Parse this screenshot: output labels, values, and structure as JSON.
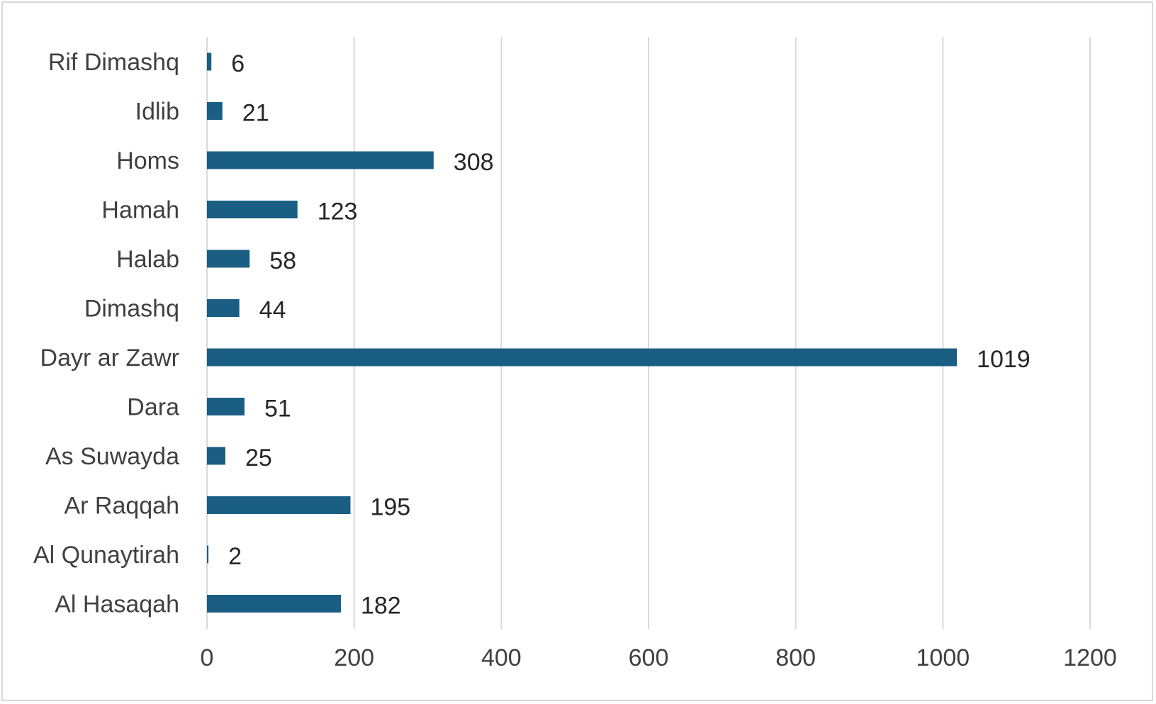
{
  "chart_data": {
    "type": "bar",
    "orientation": "horizontal",
    "categories": [
      "Rif Dimashq",
      "Idlib",
      "Homs",
      "Hamah",
      "Halab",
      "Dimashq",
      "Dayr ar Zawr",
      "Dara",
      "As Suwayda",
      "Ar Raqqah",
      "Al Qunaytirah",
      "Al Hasaqah"
    ],
    "values": [
      6,
      21,
      308,
      123,
      58,
      44,
      1019,
      51,
      25,
      195,
      2,
      182
    ],
    "xlim": [
      0,
      1200
    ],
    "xticks": [
      0,
      200,
      400,
      600,
      800,
      1000,
      1200
    ],
    "xtick_labels": [
      "0",
      "200",
      "400",
      "600",
      "800",
      "1000",
      "1200"
    ],
    "grid": "vertical",
    "legend": "none",
    "data_labels": true,
    "bar_color": "#1b5e83",
    "gridline_color": "#d9d9d9"
  }
}
